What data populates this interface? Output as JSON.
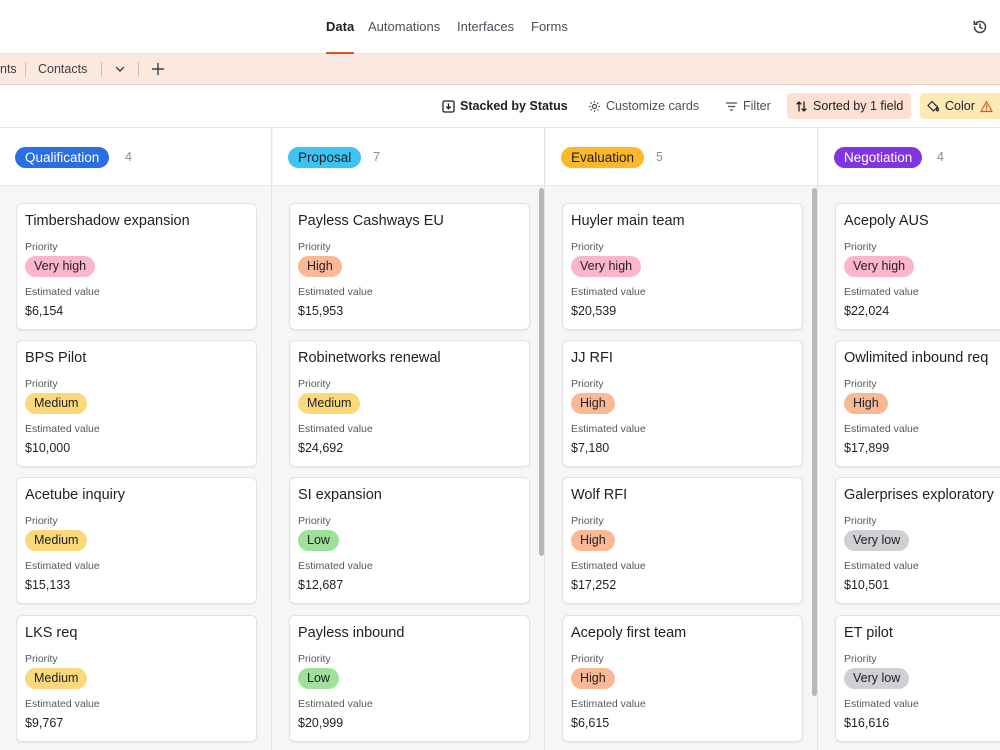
{
  "nav": {
    "tabs": [
      "Data",
      "Automations",
      "Interfaces",
      "Forms"
    ],
    "active_tab": "Data",
    "history_icon": "history-icon"
  },
  "tables": {
    "partial_tab": "nts",
    "tab_contacts": "Contacts",
    "dropdown_icon": "chevron-down-icon",
    "add_icon": "plus-icon"
  },
  "toolbar": {
    "stacked": "Stacked by Status",
    "customize": "Customize cards",
    "filter": "Filter",
    "sorted": "Sorted by 1 field",
    "color": "Color"
  },
  "colors": {
    "accent": "#d9571f",
    "Very high": "#fbb6cb",
    "High": "#fbb895",
    "Medium": "#fbd97b",
    "Low": "#9fe09a",
    "Very low": "#cfd0d3"
  },
  "board": {
    "priority_label": "Priority",
    "value_label": "Estimated value",
    "columns": [
      {
        "name": "Qualification",
        "count": "4",
        "color": "#2a6ee0",
        "text_color": "#ffffff",
        "cards": [
          {
            "title": "Timbershadow expansion",
            "priority": "Very high",
            "value": "$6,154"
          },
          {
            "title": "BPS Pilot",
            "priority": "Medium",
            "value": "$10,000"
          },
          {
            "title": "Acetube inquiry",
            "priority": "Medium",
            "value": "$15,133"
          },
          {
            "title": "LKS req",
            "priority": "Medium",
            "value": "$9,767"
          }
        ]
      },
      {
        "name": "Proposal",
        "count": "7",
        "color": "#3cc3f2",
        "text_color": "#1d1f25",
        "cards": [
          {
            "title": "Payless Cashways EU",
            "priority": "High",
            "value": "$15,953"
          },
          {
            "title": "Robinetworks renewal",
            "priority": "Medium",
            "value": "$24,692"
          },
          {
            "title": "SI expansion",
            "priority": "Low",
            "value": "$12,687"
          },
          {
            "title": "Payless inbound",
            "priority": "Low",
            "value": "$20,999"
          }
        ]
      },
      {
        "name": "Evaluation",
        "count": "5",
        "color": "#fcb829",
        "text_color": "#1d1f25",
        "cards": [
          {
            "title": "Huyler main team",
            "priority": "Very high",
            "value": "$20,539"
          },
          {
            "title": "JJ RFI",
            "priority": "High",
            "value": "$7,180"
          },
          {
            "title": "Wolf RFI",
            "priority": "High",
            "value": "$17,252"
          },
          {
            "title": "Acepoly first team",
            "priority": "High",
            "value": "$6,615"
          }
        ]
      },
      {
        "name": "Negotiation",
        "count": "4",
        "color": "#7f35e0",
        "text_color": "#ffffff",
        "cards": [
          {
            "title": "Acepoly AUS",
            "priority": "Very high",
            "value": "$22,024"
          },
          {
            "title": "Owlimited inbound req",
            "priority": "High",
            "value": "$17,899"
          },
          {
            "title": "Galerprises exploratory",
            "priority": "Very low",
            "value": "$10,501"
          },
          {
            "title": "ET pilot",
            "priority": "Very low",
            "value": "$16,616"
          }
        ]
      }
    ]
  }
}
